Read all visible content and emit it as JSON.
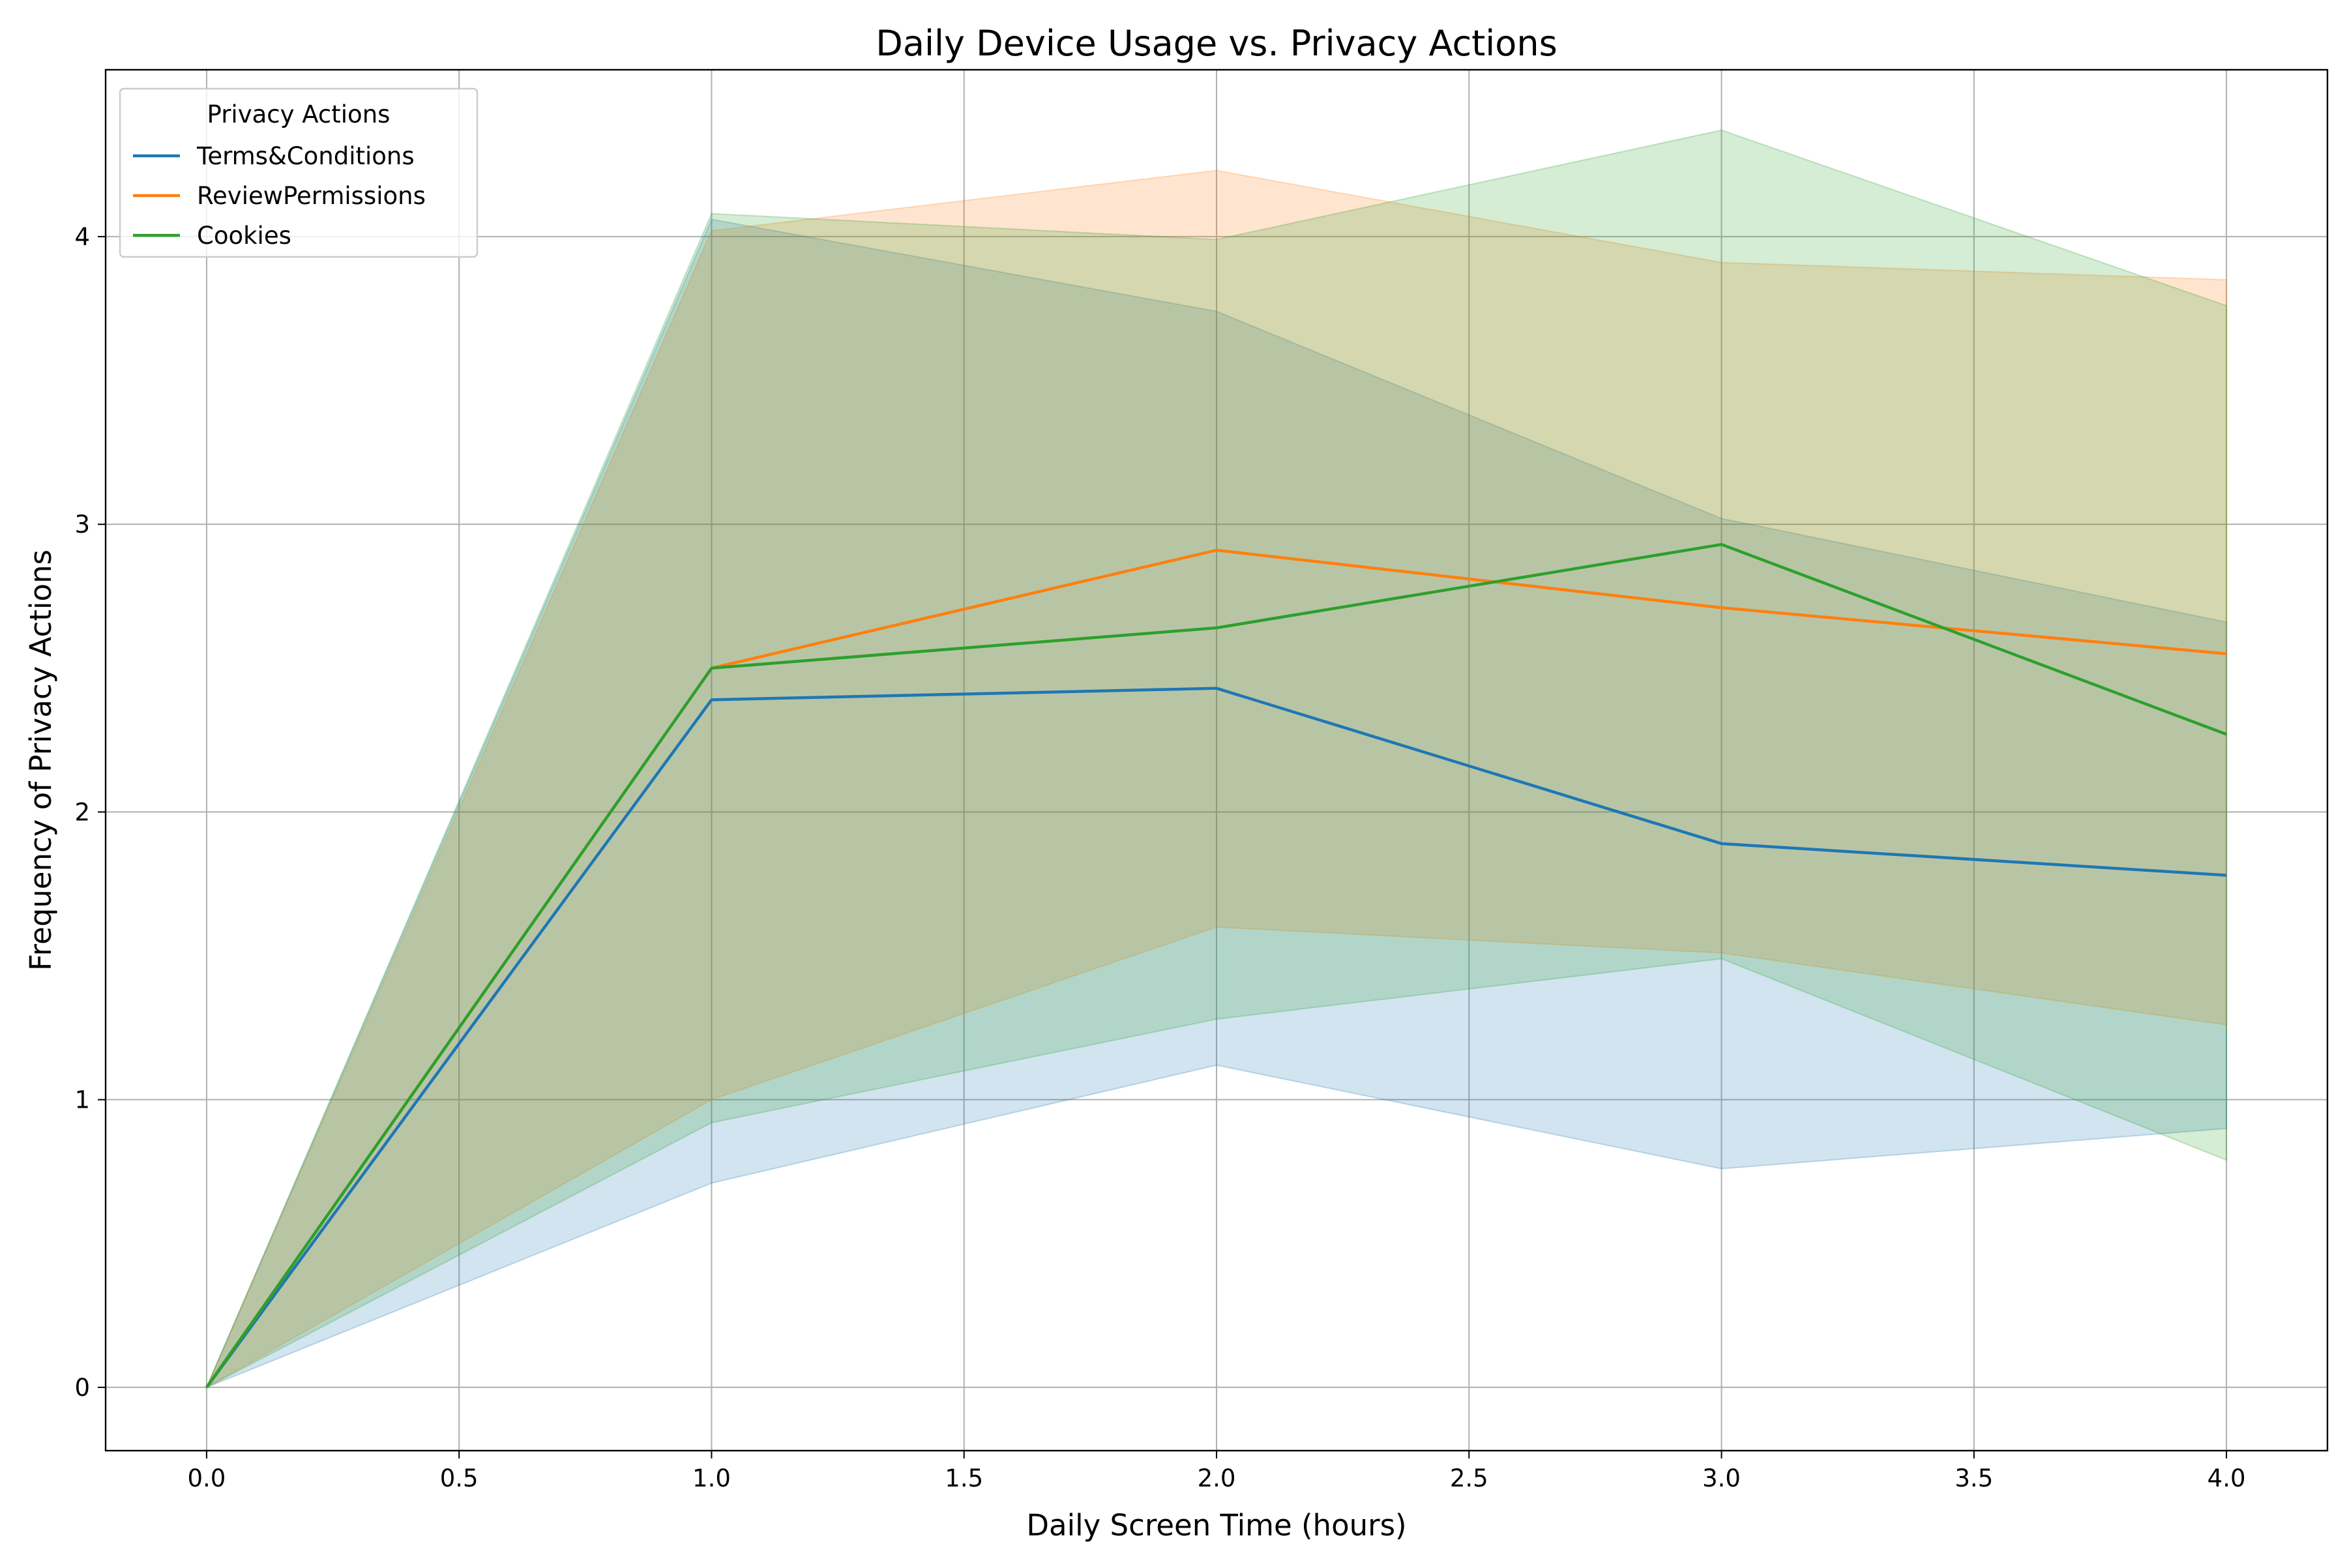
{
  "chart_data": {
    "type": "line",
    "title": "Daily Device Usage vs. Privacy Actions",
    "xlabel": "Daily Screen Time (hours)",
    "ylabel": "Frequency of Privacy Actions",
    "xlim": [
      -0.2,
      4.2
    ],
    "ylim": [
      -0.22,
      4.58
    ],
    "xticks": [
      0.0,
      0.5,
      1.0,
      1.5,
      2.0,
      2.5,
      3.0,
      3.5,
      4.0
    ],
    "xtick_labels": [
      "0.0",
      "0.5",
      "1.0",
      "1.5",
      "2.0",
      "2.5",
      "3.0",
      "3.5",
      "4.0"
    ],
    "yticks": [
      0,
      1,
      2,
      3,
      4
    ],
    "ytick_labels": [
      "0",
      "1",
      "2",
      "3",
      "4"
    ],
    "grid": true,
    "legend": {
      "title": "Privacy Actions",
      "placement": "top-left"
    },
    "x": [
      0,
      1,
      2,
      3,
      4
    ],
    "series": [
      {
        "name": "Terms&Conditions",
        "color": "#1f77b4",
        "values": [
          0,
          2.39,
          2.43,
          1.89,
          1.78
        ],
        "band_lower": [
          0,
          0.71,
          1.12,
          0.76,
          0.9
        ],
        "band_upper": [
          0,
          4.06,
          3.74,
          3.02,
          2.66
        ]
      },
      {
        "name": "ReviewPermissions",
        "color": "#ff7f0e",
        "values": [
          0,
          2.5,
          2.91,
          2.71,
          2.55
        ],
        "band_lower": [
          0,
          1.0,
          1.6,
          1.51,
          1.26
        ],
        "band_upper": [
          0,
          4.02,
          4.23,
          3.91,
          3.85
        ]
      },
      {
        "name": "Cookies",
        "color": "#2ca02c",
        "values": [
          0,
          2.5,
          2.64,
          2.93,
          2.27
        ],
        "band_lower": [
          0,
          0.92,
          1.28,
          1.49,
          0.79
        ],
        "band_upper": [
          0,
          4.08,
          3.99,
          4.37,
          3.76
        ]
      }
    ]
  }
}
